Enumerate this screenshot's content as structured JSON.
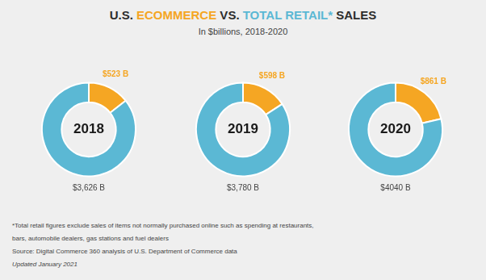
{
  "title_parts": [
    {
      "text": "U.S. ",
      "color": "#2d2d2d"
    },
    {
      "text": "ECOMMERCE",
      "color": "#F5A623"
    },
    {
      "text": " VS. ",
      "color": "#2d2d2d"
    },
    {
      "text": "TOTAL RETAIL*",
      "color": "#5BB8D4"
    },
    {
      "text": " SALES",
      "color": "#2d2d2d"
    }
  ],
  "subtitle": "In $billions, 2018-2020",
  "chart_data": [
    {
      "type": "doughnut",
      "title": "2018",
      "values": [
        523,
        3103
      ],
      "value_labels": [
        "$523 B",
        null
      ],
      "colors": [
        "#F5A623",
        "#5BB8D4"
      ],
      "data_labels": true,
      "annotation": "$3,626 B"
    },
    {
      "type": "doughnut",
      "title": "2019",
      "values": [
        598,
        3182
      ],
      "value_labels": [
        "$598 B",
        null
      ],
      "colors": [
        "#F5A623",
        "#5BB8D4"
      ],
      "data_labels": true,
      "annotation": "$3,780 B"
    },
    {
      "type": "doughnut",
      "title": "2020",
      "values": [
        861,
        3179
      ],
      "value_labels": [
        "$861 B",
        null
      ],
      "colors": [
        "#F5A623",
        "#5BB8D4"
      ],
      "data_labels": true,
      "annotation": "$4040 B"
    }
  ],
  "footnotes": [
    "*Total retail figures exclude sales of items not normally purchased online such as spending at restaurants,",
    "bars, automobile dealers, gas stations and fuel dealers",
    "Source: Digital Commerce 360 analysis of U.S. Department of Commerce data",
    "Updated January 2021"
  ]
}
